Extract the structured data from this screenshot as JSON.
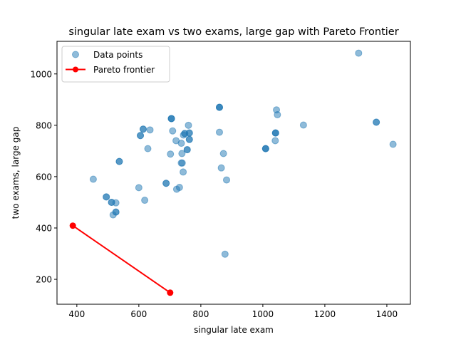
{
  "chart_data": {
    "type": "scatter",
    "title": "singular late exam vs two exams, large gap with Pareto Frontier",
    "xlabel": "singular late exam",
    "ylabel": "two exams, large gap",
    "xlim": [
      336,
      1476
    ],
    "ylim": [
      103,
      1127
    ],
    "xticks": [
      400,
      600,
      800,
      1000,
      1200,
      1400
    ],
    "yticks": [
      200,
      400,
      600,
      800,
      1000
    ],
    "legend_position": "upper-left",
    "colors": {
      "points": "#1f77b4",
      "frontier": "#ff0000"
    },
    "series": [
      {
        "name": "Data points",
        "kind": "scatter",
        "points": [
          [
            1309,
            1081
          ],
          [
            1420,
            726
          ],
          [
            1366,
            812
          ],
          [
            1366,
            812
          ],
          [
            1131,
            801
          ],
          [
            1044,
            860
          ],
          [
            1047,
            841
          ],
          [
            1041,
            770
          ],
          [
            1041,
            770
          ],
          [
            1041,
            770
          ],
          [
            1040,
            740
          ],
          [
            1009,
            709
          ],
          [
            1009,
            709
          ],
          [
            1009,
            709
          ],
          [
            860,
            870
          ],
          [
            860,
            870
          ],
          [
            860,
            870
          ],
          [
            860,
            773
          ],
          [
            873,
            690
          ],
          [
            866,
            634
          ],
          [
            883,
            587
          ],
          [
            878,
            298
          ],
          [
            760,
            800
          ],
          [
            763,
            770
          ],
          [
            763,
            770
          ],
          [
            763,
            745
          ],
          [
            763,
            745
          ],
          [
            748,
            768
          ],
          [
            748,
            768
          ],
          [
            744,
            762
          ],
          [
            756,
            705
          ],
          [
            756,
            705
          ],
          [
            737,
            730
          ],
          [
            739,
            690
          ],
          [
            737,
            653
          ],
          [
            740,
            653
          ],
          [
            743,
            618
          ],
          [
            720,
            740
          ],
          [
            709,
            778
          ],
          [
            702,
            688
          ],
          [
            705,
            826
          ],
          [
            705,
            826
          ],
          [
            705,
            826
          ],
          [
            722,
            551
          ],
          [
            731,
            558
          ],
          [
            688,
            574
          ],
          [
            688,
            574
          ],
          [
            636,
            782
          ],
          [
            614,
            785
          ],
          [
            614,
            785
          ],
          [
            605,
            760
          ],
          [
            605,
            760
          ],
          [
            629,
            709
          ],
          [
            600,
            557
          ],
          [
            619,
            508
          ],
          [
            537,
            659
          ],
          [
            537,
            659
          ],
          [
            453,
            590
          ],
          [
            495,
            521
          ],
          [
            495,
            521
          ],
          [
            512,
            500
          ],
          [
            512,
            500
          ],
          [
            526,
            498
          ],
          [
            526,
            462
          ],
          [
            526,
            462
          ],
          [
            517,
            451
          ]
        ]
      },
      {
        "name": "Pareto frontier",
        "kind": "line",
        "points": [
          [
            387,
            409
          ],
          [
            701,
            148
          ]
        ]
      }
    ]
  }
}
